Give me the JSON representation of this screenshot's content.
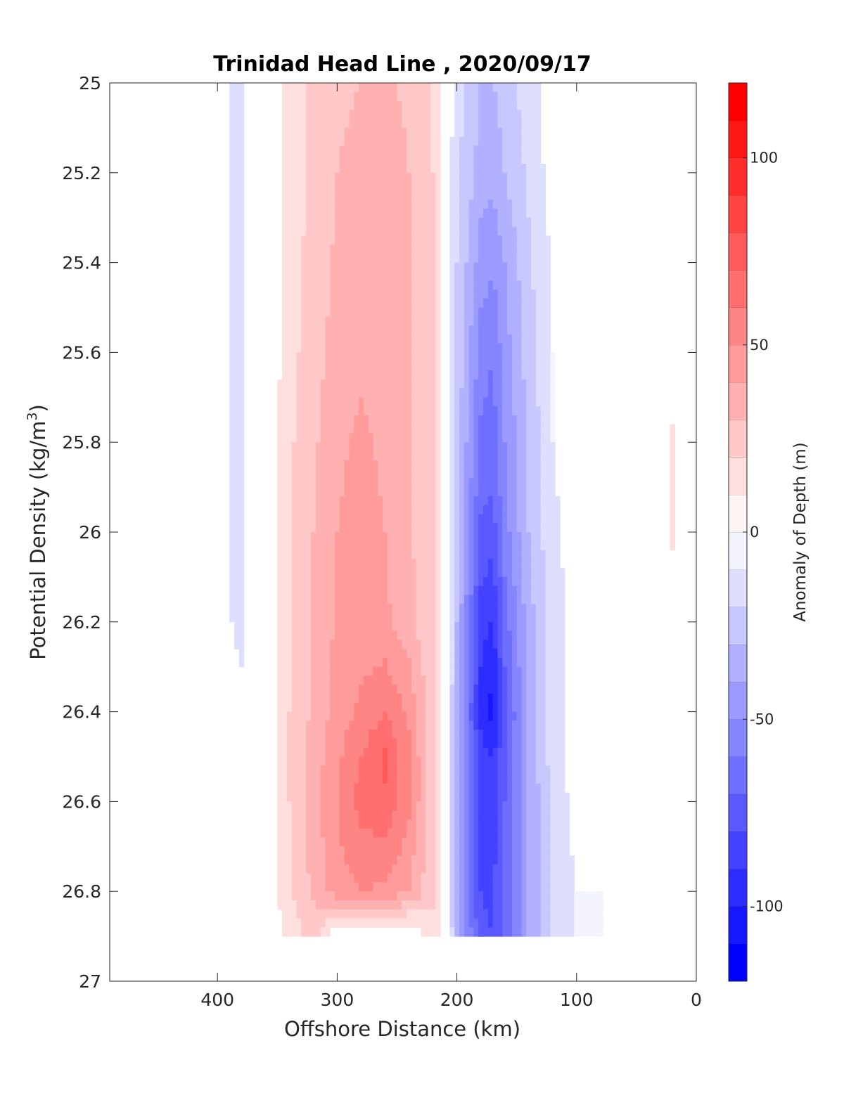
{
  "chart_data": {
    "type": "heatmap",
    "title": "Trinidad Head Line , 2020/09/17",
    "xlabel": "Offshore Distance (km)",
    "ylabel_main": "Potential Density (kg/m",
    "ylabel_sup": "3",
    "ylabel_end": ")",
    "xlim": [
      490,
      0
    ],
    "x_reversed": true,
    "ylim": [
      25,
      27
    ],
    "y_reversed": true,
    "xticks": [
      400,
      300,
      200,
      100,
      0
    ],
    "xtick_labels": [
      "400",
      "300",
      "200",
      "100",
      "0"
    ],
    "yticks": [
      25,
      25.2,
      25.4,
      25.6,
      25.8,
      26,
      26.2,
      26.4,
      26.6,
      26.8,
      27
    ],
    "ytick_labels": [
      "25",
      "25.2",
      "25.4",
      "25.6",
      "25.8",
      "26",
      "26.2",
      "26.4",
      "26.6",
      "26.8",
      "27"
    ],
    "colorbar": {
      "label": "Anomaly of Depth (m)",
      "range": [
        -120,
        120
      ],
      "step": 10,
      "ticks": [
        100,
        50,
        0,
        -50,
        -100
      ],
      "tick_labels": [
        "100",
        "50",
        "0",
        "-50",
        "-100"
      ],
      "low_color": "#0000ff",
      "high_color": "#ff0000"
    },
    "data_extent": {
      "x": [
        410,
        10
      ],
      "y": [
        25,
        26.9
      ]
    },
    "x_nodes": [
      410,
      380,
      360,
      340,
      320,
      300,
      280,
      260,
      240,
      220,
      210,
      200,
      180,
      170,
      160,
      140,
      120,
      100,
      80,
      60,
      40,
      20,
      10
    ],
    "y_nodes": [
      25,
      25.2,
      25.4,
      25.6,
      25.8,
      26,
      26.2,
      26.4,
      26.5,
      26.6,
      26.8,
      26.9
    ],
    "anomaly_by_density": [
      [
        -5,
        -12,
        0,
        14,
        22,
        28,
        30,
        32,
        28,
        18,
        0,
        -15,
        -30,
        -30,
        -25,
        -15,
        -3,
        -5,
        -3,
        -8,
        0,
        0,
        0
      ],
      [
        -5,
        -12,
        0,
        15,
        22,
        30,
        33,
        35,
        30,
        20,
        0,
        -18,
        -35,
        -38,
        -30,
        -18,
        -5,
        -5,
        -3,
        -8,
        0,
        0,
        0
      ],
      [
        -5,
        -12,
        0,
        15,
        24,
        32,
        35,
        35,
        30,
        20,
        0,
        -20,
        -45,
        -48,
        -40,
        -22,
        -8,
        -5,
        -5,
        -8,
        0,
        0,
        0
      ],
      [
        -5,
        -12,
        0,
        16,
        26,
        34,
        38,
        36,
        30,
        20,
        0,
        -22,
        -55,
        -60,
        -45,
        -25,
        -10,
        -5,
        -5,
        -5,
        0,
        0,
        0
      ],
      [
        -5,
        -12,
        0,
        18,
        28,
        38,
        42,
        38,
        30,
        20,
        0,
        -25,
        -62,
        -65,
        -50,
        -28,
        -10,
        -5,
        -5,
        0,
        0,
        12,
        0
      ],
      [
        -5,
        -12,
        0,
        18,
        30,
        40,
        44,
        40,
        32,
        20,
        0,
        -28,
        -72,
        -75,
        -55,
        -30,
        -12,
        -5,
        -3,
        0,
        0,
        12,
        0
      ],
      [
        -5,
        -12,
        0,
        18,
        30,
        42,
        44,
        42,
        34,
        20,
        0,
        -30,
        -85,
        -92,
        -65,
        -35,
        -15,
        -5,
        -3,
        0,
        0,
        0,
        0
      ],
      [
        -3,
        -8,
        0,
        20,
        32,
        44,
        52,
        60,
        48,
        22,
        0,
        -35,
        -95,
        -105,
        -75,
        -38,
        -15,
        -5,
        -3,
        0,
        0,
        0,
        0
      ],
      [
        -3,
        -5,
        0,
        20,
        34,
        48,
        60,
        72,
        52,
        22,
        0,
        -35,
        -85,
        -90,
        -72,
        -38,
        -15,
        -5,
        -3,
        0,
        0,
        0,
        0
      ],
      [
        -3,
        -5,
        0,
        20,
        36,
        50,
        64,
        68,
        52,
        22,
        0,
        -38,
        -82,
        -85,
        -70,
        -40,
        -18,
        -5,
        -5,
        -3,
        0,
        0,
        0
      ],
      [
        0,
        0,
        0,
        18,
        32,
        46,
        50,
        48,
        40,
        22,
        0,
        -38,
        -80,
        -82,
        -68,
        -40,
        -18,
        -10,
        -10,
        -5,
        0,
        0,
        0
      ],
      [
        0,
        0,
        0,
        14,
        24,
        0,
        0,
        0,
        0,
        18,
        0,
        -32,
        -78,
        -80,
        -68,
        -38,
        -18,
        -10,
        -10,
        -5,
        0,
        0,
        0
      ]
    ]
  }
}
